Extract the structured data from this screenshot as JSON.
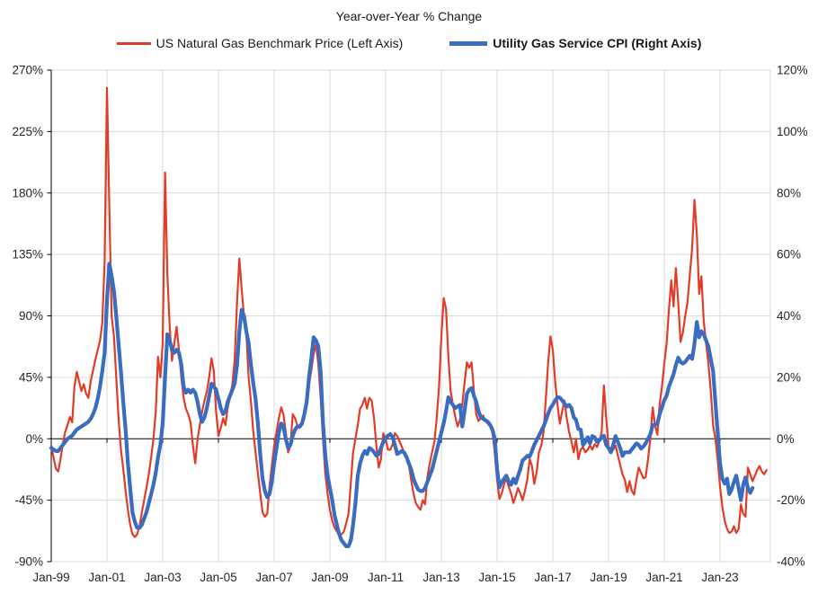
{
  "title": "Year-over-Year % Change",
  "legend": [
    {
      "label": "US Natural Gas Benchmark Price (Left Axis)",
      "color": "#e23b28",
      "thickness": 2.2
    },
    {
      "label": "Utility Gas Service CPI (Right Axis)",
      "color": "#3a6cbf",
      "thickness": 4.2
    }
  ],
  "colors": {
    "red_series": "#e23b28",
    "blue_series": "#3a6cbf",
    "gridline": "#d9d9d9",
    "axis_line": "#000000",
    "label_text": "#262626"
  },
  "left_axis": {
    "tick_labels": [
      "270%",
      "225%",
      "180%",
      "135%",
      "90%",
      "45%",
      "0%",
      "-45%",
      "-90%"
    ],
    "min": -90,
    "max": 270,
    "step": 45
  },
  "right_axis": {
    "tick_labels": [
      "120%",
      "100%",
      "80%",
      "60%",
      "40%",
      "20%",
      "0%",
      "-20%",
      "-40%"
    ],
    "min": -40,
    "max": 120,
    "step": 20
  },
  "x_axis": {
    "tick_labels": [
      "Jan-99",
      "Jan-01",
      "Jan-03",
      "Jan-05",
      "Jan-07",
      "Jan-09",
      "Jan-11",
      "Jan-13",
      "Jan-15",
      "Jan-17",
      "Jan-19",
      "Jan-21",
      "Jan-23"
    ]
  },
  "chart_data": {
    "type": "line",
    "title": "Year-over-Year % Change",
    "x_start": "1999-01",
    "x_interval": "monthly",
    "x_tick_labels": [
      "Jan-99",
      "Jan-01",
      "Jan-03",
      "Jan-05",
      "Jan-07",
      "Jan-09",
      "Jan-11",
      "Jan-13",
      "Jan-15",
      "Jan-17",
      "Jan-19",
      "Jan-21",
      "Jan-23"
    ],
    "left_ylim": [
      -90,
      270
    ],
    "right_ylim": [
      -40,
      120
    ],
    "grid": true,
    "legend_position": "top",
    "series": [
      {
        "name": "US Natural Gas Benchmark Price (Left Axis)",
        "axis": "left",
        "color": "#e23b28",
        "values": [
          -5,
          -14,
          -22,
          -24,
          -15,
          -4,
          5,
          10,
          16,
          12,
          38,
          49,
          42,
          35,
          40,
          33,
          30,
          42,
          50,
          58,
          65,
          72,
          85,
          130,
          257,
          170,
          90,
          75,
          45,
          15,
          -8,
          -22,
          -38,
          -52,
          -63,
          -70,
          -72,
          -70,
          -64,
          -54,
          -45,
          -36,
          -26,
          -14,
          0,
          20,
          60,
          45,
          70,
          195,
          120,
          82,
          57,
          70,
          82,
          65,
          45,
          30,
          22,
          18,
          12,
          -5,
          -18,
          0,
          10,
          20,
          28,
          35,
          45,
          59,
          50,
          20,
          2,
          8,
          15,
          10,
          23,
          30,
          40,
          58,
          100,
          132,
          110,
          90,
          78,
          45,
          27,
          5,
          -10,
          -25,
          -40,
          -54,
          -57,
          -55,
          -35,
          -20,
          -5,
          5,
          15,
          23,
          18,
          5,
          -10,
          -5,
          18,
          15,
          10,
          8,
          10,
          15,
          30,
          40,
          50,
          62,
          69,
          55,
          30,
          0,
          -25,
          -40,
          -52,
          -60,
          -65,
          -68,
          -70,
          -70,
          -68,
          -62,
          -55,
          -32,
          -10,
          0,
          10,
          22,
          25,
          30,
          22,
          30,
          28,
          15,
          -5,
          -21,
          -15,
          4,
          0,
          -8,
          -8,
          -4,
          4,
          2,
          -2,
          -6,
          -10,
          -15,
          -19,
          -30,
          -40,
          -47,
          -50,
          -52,
          -45,
          -48,
          -28,
          -18,
          -10,
          -2,
          15,
          38,
          75,
          103,
          95,
          60,
          35,
          25,
          16,
          9,
          14,
          25,
          41,
          56,
          52,
          56,
          35,
          18,
          13,
          15,
          17,
          13,
          11,
          9,
          5,
          -10,
          -30,
          -44,
          -40,
          -33,
          -29,
          -35,
          -40,
          -47,
          -42,
          -36,
          -40,
          -45,
          -38,
          -30,
          -15,
          -20,
          -33,
          -25,
          -10,
          -5,
          5,
          30,
          56,
          75,
          65,
          42,
          25,
          11,
          20,
          28,
          15,
          5,
          -2,
          -10,
          0,
          -15,
          -8,
          -6,
          -10,
          -8,
          -5,
          -8,
          -4,
          -6,
          -2,
          5,
          39,
          15,
          -6,
          -10,
          -8,
          -5,
          -12,
          -19,
          -26,
          -30,
          -39,
          -31,
          -38,
          -41,
          -30,
          -21,
          -25,
          -29,
          -28,
          -15,
          0,
          23,
          10,
          3,
          25,
          38,
          55,
          70,
          95,
          116,
          97,
          125,
          100,
          71,
          78,
          90,
          100,
          120,
          140,
          175,
          150,
          106,
          119,
          86,
          70,
          55,
          35,
          10,
          0,
          -15,
          -35,
          -50,
          -60,
          -66,
          -69,
          -68,
          -64,
          -69,
          -66,
          -48,
          -55,
          -57,
          -21,
          -26,
          -31,
          -27,
          -23,
          -20,
          -24,
          -26,
          -23
        ]
      },
      {
        "name": "Utility Gas Service CPI (Right Axis)",
        "axis": "right",
        "color": "#3a6cbf",
        "values": [
          -3,
          -3.5,
          -4,
          -4,
          -3,
          -2,
          -1,
          0,
          0.5,
          1,
          2,
          3,
          3.5,
          4,
          4.5,
          5,
          5.5,
          6.5,
          8,
          10,
          13,
          17,
          22,
          28,
          45,
          57,
          53,
          48,
          40,
          31,
          22,
          12,
          3,
          -8,
          -16,
          -24,
          -27,
          -29,
          -29,
          -28,
          -26,
          -24,
          -21,
          -18,
          -15,
          -11,
          -6,
          -2,
          5,
          20,
          34,
          32,
          29,
          28,
          29,
          28,
          24,
          17,
          15,
          16,
          15,
          16,
          15,
          12,
          8,
          5.5,
          7,
          10,
          14,
          18,
          17,
          16,
          13,
          10,
          8,
          9,
          12,
          14,
          16,
          18,
          24,
          35,
          42,
          40,
          35,
          31,
          24,
          18,
          13,
          5,
          -5,
          -13,
          -17,
          -19,
          -18,
          -14,
          -8,
          -3,
          2,
          5,
          4,
          0,
          -3,
          -2,
          1,
          3,
          4,
          4,
          5,
          8,
          12,
          20,
          26,
          33,
          32,
          30,
          22,
          5,
          -5,
          -12,
          -16,
          -20,
          -25,
          -28,
          -31,
          -33,
          -34,
          -35,
          -35,
          -33,
          -28,
          -21,
          -12,
          -8,
          -5.5,
          -4,
          -5,
          -3,
          -3.5,
          -4.4,
          -5.5,
          -5,
          -3,
          -1,
          0,
          1,
          1.5,
          0.5,
          -2,
          -5,
          -4.5,
          -4,
          -4.5,
          -6,
          -8,
          -10,
          -13,
          -15,
          -16.5,
          -17,
          -17,
          -16,
          -14,
          -12,
          -10,
          -7,
          -4,
          -1,
          2,
          5,
          9,
          13.5,
          12,
          11,
          10,
          10.5,
          11,
          4,
          9,
          14.6,
          16,
          16.5,
          14,
          12,
          9,
          7,
          6.5,
          6,
          5.5,
          4.5,
          3,
          0,
          -10,
          -15.8,
          -14,
          -13,
          -12,
          -14,
          -15,
          -13,
          -14.5,
          -12,
          -10,
          -7,
          -6.4,
          -5.5,
          -5.8,
          -4,
          -2,
          -0.5,
          1,
          2.5,
          4,
          6,
          8.2,
          10,
          11.1,
          12.5,
          13.5,
          13.4,
          12.5,
          11.5,
          10.5,
          11,
          10,
          7,
          6.2,
          3.2,
          3,
          -2,
          -1,
          0.5,
          -1.5,
          0.9,
          0.5,
          -1,
          -0.5,
          0.5,
          1,
          -2,
          -3,
          -4.4,
          -2,
          0.9,
          -1,
          -3,
          -5.6,
          -4.4,
          -4.4,
          -4.4,
          -3.5,
          -2.5,
          -1.5,
          -2,
          -3.2,
          -2.5,
          -1.5,
          0,
          1.5,
          4.4,
          4.6,
          4.8,
          8,
          10.2,
          12.6,
          14,
          17,
          19,
          21,
          24,
          26.4,
          25,
          24.5,
          25,
          26,
          27,
          26,
          31,
          38,
          33,
          35,
          34,
          32,
          30,
          26,
          22,
          12,
          2,
          -8,
          -13,
          -14.6,
          -13,
          -18,
          -16.5,
          -14,
          -12,
          -16,
          -20,
          -15,
          -12.6,
          -16,
          -17.6,
          -16
        ]
      }
    ]
  }
}
